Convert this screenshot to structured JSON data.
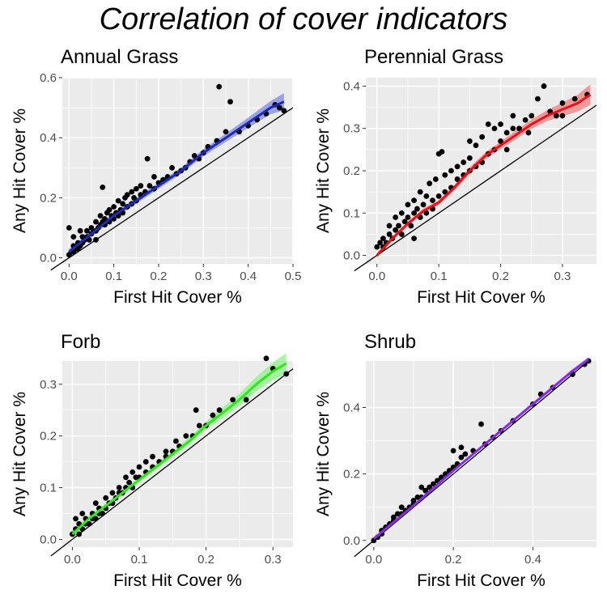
{
  "title": "Correlation of cover indicators",
  "chart_data": [
    {
      "type": "scatter",
      "title": "Annual Grass",
      "xlabel": "First Hit Cover %",
      "ylabel": "Any Hit Cover %",
      "xlim": [
        -0.015,
        0.5
      ],
      "ylim": [
        -0.02,
        0.6
      ],
      "xticks": [
        0.0,
        0.1,
        0.2,
        0.3,
        0.4,
        0.5
      ],
      "xtick_labels": [
        "0.0",
        "0.1",
        "0.2",
        "0.3",
        "0.4",
        "0.5"
      ],
      "yticks": [
        0.0,
        0.2,
        0.4,
        0.6
      ],
      "ytick_labels": [
        "0.0",
        "0.2",
        "0.4",
        "0.6"
      ],
      "fit_color": "#1f2bb0",
      "ribbon_color": "#7f8ae0",
      "points": [
        [
          0.0,
          0.01
        ],
        [
          0.005,
          0.02
        ],
        [
          0.01,
          0.02
        ],
        [
          0.01,
          0.04
        ],
        [
          0.015,
          0.03
        ],
        [
          0.02,
          0.03
        ],
        [
          0.02,
          0.05
        ],
        [
          0.025,
          0.04
        ],
        [
          0.03,
          0.05
        ],
        [
          0.03,
          0.07
        ],
        [
          0.0,
          0.1
        ],
        [
          0.01,
          0.07
        ],
        [
          0.035,
          0.06
        ],
        [
          0.04,
          0.07
        ],
        [
          0.04,
          0.09
        ],
        [
          0.045,
          0.06
        ],
        [
          0.05,
          0.08
        ],
        [
          0.05,
          0.1
        ],
        [
          0.055,
          0.09
        ],
        [
          0.06,
          0.09
        ],
        [
          0.06,
          0.12
        ],
        [
          0.065,
          0.1
        ],
        [
          0.07,
          0.11
        ],
        [
          0.07,
          0.14
        ],
        [
          0.075,
          0.12
        ],
        [
          0.08,
          0.11
        ],
        [
          0.08,
          0.13
        ],
        [
          0.085,
          0.15
        ],
        [
          0.09,
          0.12
        ],
        [
          0.09,
          0.16
        ],
        [
          0.095,
          0.14
        ],
        [
          0.1,
          0.13
        ],
        [
          0.1,
          0.17
        ],
        [
          0.105,
          0.15
        ],
        [
          0.11,
          0.14
        ],
        [
          0.11,
          0.19
        ],
        [
          0.115,
          0.16
        ],
        [
          0.12,
          0.15
        ],
        [
          0.12,
          0.18
        ],
        [
          0.125,
          0.2
        ],
        [
          0.13,
          0.17
        ],
        [
          0.13,
          0.21
        ],
        [
          0.14,
          0.18
        ],
        [
          0.14,
          0.22
        ],
        [
          0.145,
          0.2
        ],
        [
          0.15,
          0.19
        ],
        [
          0.15,
          0.23
        ],
        [
          0.16,
          0.21
        ],
        [
          0.16,
          0.24
        ],
        [
          0.17,
          0.22
        ],
        [
          0.175,
          0.33
        ],
        [
          0.18,
          0.24
        ],
        [
          0.19,
          0.23
        ],
        [
          0.19,
          0.27
        ],
        [
          0.2,
          0.25
        ],
        [
          0.21,
          0.26
        ],
        [
          0.22,
          0.27
        ],
        [
          0.23,
          0.3
        ],
        [
          0.24,
          0.28
        ],
        [
          0.25,
          0.29
        ],
        [
          0.26,
          0.3
        ],
        [
          0.27,
          0.32
        ],
        [
          0.28,
          0.34
        ],
        [
          0.29,
          0.33
        ],
        [
          0.3,
          0.35
        ],
        [
          0.31,
          0.37
        ],
        [
          0.33,
          0.39
        ],
        [
          0.335,
          0.57
        ],
        [
          0.35,
          0.42
        ],
        [
          0.36,
          0.52
        ],
        [
          0.38,
          0.42
        ],
        [
          0.4,
          0.44
        ],
        [
          0.42,
          0.46
        ],
        [
          0.44,
          0.48
        ],
        [
          0.46,
          0.51
        ],
        [
          0.47,
          0.5
        ],
        [
          0.48,
          0.49
        ],
        [
          0.075,
          0.235
        ],
        [
          0.025,
          0.09
        ],
        [
          0.06,
          0.06
        ]
      ],
      "fit": [
        [
          0.0,
          0.02
        ],
        [
          0.05,
          0.08
        ],
        [
          0.1,
          0.14
        ],
        [
          0.15,
          0.19
        ],
        [
          0.2,
          0.24
        ],
        [
          0.25,
          0.29
        ],
        [
          0.3,
          0.35
        ],
        [
          0.35,
          0.4
        ],
        [
          0.4,
          0.45
        ],
        [
          0.45,
          0.5
        ],
        [
          0.48,
          0.52
        ]
      ],
      "ribbon": [
        0.01,
        0.01,
        0.01,
        0.01,
        0.01,
        0.01,
        0.012,
        0.014,
        0.017,
        0.022,
        0.028
      ]
    },
    {
      "type": "scatter",
      "title": "Perennial Grass",
      "xlabel": "First Hit Cover %",
      "ylabel": "Any Hit Cover %",
      "xlim": [
        -0.018,
        0.355
      ],
      "ylim": [
        -0.02,
        0.42
      ],
      "xticks": [
        0.0,
        0.1,
        0.2,
        0.3
      ],
      "xtick_labels": [
        "0.0",
        "0.1",
        "0.2",
        "0.3"
      ],
      "yticks": [
        0.0,
        0.1,
        0.2,
        0.3,
        0.4
      ],
      "ytick_labels": [
        "0.0",
        "0.1",
        "0.2",
        "0.3",
        "0.4"
      ],
      "fit_color": "#e8121a",
      "ribbon_color": "#f07f7f",
      "points": [
        [
          0.0,
          0.02
        ],
        [
          0.005,
          0.03
        ],
        [
          0.01,
          0.02
        ],
        [
          0.01,
          0.04
        ],
        [
          0.015,
          0.03
        ],
        [
          0.02,
          0.05
        ],
        [
          0.02,
          0.07
        ],
        [
          0.025,
          0.04
        ],
        [
          0.03,
          0.06
        ],
        [
          0.03,
          0.09
        ],
        [
          0.035,
          0.07
        ],
        [
          0.04,
          0.05
        ],
        [
          0.04,
          0.1
        ],
        [
          0.045,
          0.08
        ],
        [
          0.05,
          0.09
        ],
        [
          0.05,
          0.12
        ],
        [
          0.055,
          0.07
        ],
        [
          0.06,
          0.1
        ],
        [
          0.06,
          0.13
        ],
        [
          0.065,
          0.11
        ],
        [
          0.07,
          0.09
        ],
        [
          0.07,
          0.15
        ],
        [
          0.075,
          0.12
        ],
        [
          0.08,
          0.1
        ],
        [
          0.08,
          0.14
        ],
        [
          0.085,
          0.17
        ],
        [
          0.09,
          0.13
        ],
        [
          0.09,
          0.11
        ],
        [
          0.095,
          0.18
        ],
        [
          0.1,
          0.14
        ],
        [
          0.1,
          0.24
        ],
        [
          0.105,
          0.245
        ],
        [
          0.11,
          0.15
        ],
        [
          0.11,
          0.19
        ],
        [
          0.12,
          0.16
        ],
        [
          0.12,
          0.2
        ],
        [
          0.13,
          0.18
        ],
        [
          0.13,
          0.21
        ],
        [
          0.14,
          0.19
        ],
        [
          0.14,
          0.22
        ],
        [
          0.15,
          0.2
        ],
        [
          0.15,
          0.23
        ],
        [
          0.16,
          0.21
        ],
        [
          0.16,
          0.26
        ],
        [
          0.17,
          0.22
        ],
        [
          0.17,
          0.28
        ],
        [
          0.18,
          0.24
        ],
        [
          0.18,
          0.31
        ],
        [
          0.19,
          0.25
        ],
        [
          0.19,
          0.3
        ],
        [
          0.2,
          0.27
        ],
        [
          0.21,
          0.29
        ],
        [
          0.21,
          0.25
        ],
        [
          0.22,
          0.3
        ],
        [
          0.23,
          0.3
        ],
        [
          0.24,
          0.32
        ],
        [
          0.25,
          0.33
        ],
        [
          0.26,
          0.37
        ],
        [
          0.27,
          0.4
        ],
        [
          0.28,
          0.34
        ],
        [
          0.29,
          0.33
        ],
        [
          0.3,
          0.36
        ],
        [
          0.32,
          0.37
        ],
        [
          0.34,
          0.38
        ],
        [
          0.2,
          0.31
        ],
        [
          0.15,
          0.27
        ],
        [
          0.22,
          0.33
        ],
        [
          0.245,
          0.29
        ],
        [
          0.3,
          0.33
        ],
        [
          0.06,
          0.04
        ]
      ],
      "fit": [
        [
          0.0,
          0.0
        ],
        [
          0.025,
          0.04
        ],
        [
          0.05,
          0.075
        ],
        [
          0.075,
          0.105
        ],
        [
          0.1,
          0.125
        ],
        [
          0.125,
          0.16
        ],
        [
          0.15,
          0.2
        ],
        [
          0.175,
          0.235
        ],
        [
          0.2,
          0.26
        ],
        [
          0.225,
          0.285
        ],
        [
          0.25,
          0.31
        ],
        [
          0.275,
          0.33
        ],
        [
          0.3,
          0.345
        ],
        [
          0.325,
          0.36
        ],
        [
          0.345,
          0.38
        ]
      ],
      "ribbon": [
        0.006,
        0.005,
        0.005,
        0.006,
        0.006,
        0.007,
        0.008,
        0.008,
        0.009,
        0.01,
        0.011,
        0.013,
        0.016,
        0.02,
        0.024
      ]
    },
    {
      "type": "scatter",
      "title": "Forb",
      "xlabel": "First Hit Cover %",
      "ylabel": "Any Hit Cover %",
      "xlim": [
        -0.015,
        0.33
      ],
      "ylim": [
        -0.015,
        0.345
      ],
      "xticks": [
        0.0,
        0.1,
        0.2,
        0.3
      ],
      "xtick_labels": [
        "0.0",
        "0.1",
        "0.2",
        "0.3"
      ],
      "yticks": [
        0.0,
        0.1,
        0.2,
        0.3
      ],
      "ytick_labels": [
        "0.0",
        "0.1",
        "0.2",
        "0.3"
      ],
      "fit_color": "#2ee81a",
      "ribbon_color": "#90f08a",
      "points": [
        [
          0.0,
          0.01
        ],
        [
          0.005,
          0.02
        ],
        [
          0.01,
          0.01
        ],
        [
          0.01,
          0.03
        ],
        [
          0.015,
          0.02
        ],
        [
          0.02,
          0.03
        ],
        [
          0.02,
          0.04
        ],
        [
          0.025,
          0.03
        ],
        [
          0.03,
          0.04
        ],
        [
          0.03,
          0.05
        ],
        [
          0.035,
          0.04
        ],
        [
          0.04,
          0.05
        ],
        [
          0.04,
          0.06
        ],
        [
          0.045,
          0.05
        ],
        [
          0.05,
          0.06
        ],
        [
          0.05,
          0.08
        ],
        [
          0.055,
          0.07
        ],
        [
          0.06,
          0.07
        ],
        [
          0.06,
          0.09
        ],
        [
          0.065,
          0.08
        ],
        [
          0.07,
          0.09
        ],
        [
          0.07,
          0.1
        ],
        [
          0.075,
          0.09
        ],
        [
          0.08,
          0.1
        ],
        [
          0.08,
          0.12
        ],
        [
          0.085,
          0.11
        ],
        [
          0.09,
          0.1
        ],
        [
          0.09,
          0.13
        ],
        [
          0.095,
          0.12
        ],
        [
          0.1,
          0.12
        ],
        [
          0.1,
          0.14
        ],
        [
          0.11,
          0.13
        ],
        [
          0.11,
          0.15
        ],
        [
          0.12,
          0.14
        ],
        [
          0.12,
          0.16
        ],
        [
          0.13,
          0.15
        ],
        [
          0.14,
          0.16
        ],
        [
          0.14,
          0.17
        ],
        [
          0.15,
          0.17
        ],
        [
          0.155,
          0.19
        ],
        [
          0.16,
          0.18
        ],
        [
          0.17,
          0.2
        ],
        [
          0.18,
          0.2
        ],
        [
          0.19,
          0.22
        ],
        [
          0.185,
          0.25
        ],
        [
          0.2,
          0.22
        ],
        [
          0.21,
          0.24
        ],
        [
          0.22,
          0.25
        ],
        [
          0.24,
          0.27
        ],
        [
          0.26,
          0.27
        ],
        [
          0.29,
          0.35
        ],
        [
          0.3,
          0.33
        ],
        [
          0.32,
          0.32
        ],
        [
          0.005,
          0.04
        ],
        [
          0.015,
          0.05
        ],
        [
          0.035,
          0.07
        ]
      ],
      "fit": [
        [
          0.0,
          0.01
        ],
        [
          0.025,
          0.04
        ],
        [
          0.05,
          0.065
        ],
        [
          0.075,
          0.09
        ],
        [
          0.1,
          0.115
        ],
        [
          0.125,
          0.14
        ],
        [
          0.15,
          0.165
        ],
        [
          0.175,
          0.19
        ],
        [
          0.2,
          0.22
        ],
        [
          0.225,
          0.245
        ],
        [
          0.25,
          0.27
        ],
        [
          0.275,
          0.3
        ],
        [
          0.3,
          0.325
        ],
        [
          0.32,
          0.34
        ]
      ],
      "ribbon": [
        0.008,
        0.006,
        0.005,
        0.005,
        0.005,
        0.005,
        0.006,
        0.007,
        0.008,
        0.01,
        0.012,
        0.014,
        0.017,
        0.02
      ]
    },
    {
      "type": "scatter",
      "title": "Shrub",
      "xlabel": "First Hit Cover %",
      "ylabel": "Any Hit Cover %",
      "xlim": [
        -0.02,
        0.56
      ],
      "ylim": [
        -0.02,
        0.54
      ],
      "xticks": [
        0.0,
        0.2,
        0.4
      ],
      "xtick_labels": [
        "0.0",
        "0.2",
        "0.4"
      ],
      "yticks": [
        0.0,
        0.2,
        0.4
      ],
      "ytick_labels": [
        "0.0",
        "0.2",
        "0.4"
      ],
      "fit_color": "#8a2be2",
      "ribbon_color": "#c29aee",
      "points": [
        [
          0.0,
          0.0
        ],
        [
          0.01,
          0.01
        ],
        [
          0.02,
          0.02
        ],
        [
          0.02,
          0.03
        ],
        [
          0.03,
          0.04
        ],
        [
          0.04,
          0.05
        ],
        [
          0.05,
          0.06
        ],
        [
          0.05,
          0.07
        ],
        [
          0.06,
          0.08
        ],
        [
          0.07,
          0.08
        ],
        [
          0.08,
          0.09
        ],
        [
          0.09,
          0.1
        ],
        [
          0.1,
          0.11
        ],
        [
          0.1,
          0.12
        ],
        [
          0.11,
          0.13
        ],
        [
          0.12,
          0.13
        ],
        [
          0.13,
          0.15
        ],
        [
          0.14,
          0.16
        ],
        [
          0.15,
          0.17
        ],
        [
          0.16,
          0.18
        ],
        [
          0.17,
          0.19
        ],
        [
          0.18,
          0.2
        ],
        [
          0.19,
          0.21
        ],
        [
          0.2,
          0.22
        ],
        [
          0.21,
          0.23
        ],
        [
          0.22,
          0.25
        ],
        [
          0.23,
          0.26
        ],
        [
          0.25,
          0.27
        ],
        [
          0.27,
          0.35
        ],
        [
          0.28,
          0.29
        ],
        [
          0.3,
          0.31
        ],
        [
          0.32,
          0.33
        ],
        [
          0.35,
          0.36
        ],
        [
          0.4,
          0.41
        ],
        [
          0.42,
          0.44
        ],
        [
          0.45,
          0.46
        ],
        [
          0.5,
          0.5
        ],
        [
          0.53,
          0.53
        ],
        [
          0.54,
          0.54
        ],
        [
          0.07,
          0.1
        ],
        [
          0.12,
          0.16
        ],
        [
          0.2,
          0.27
        ],
        [
          0.22,
          0.28
        ]
      ],
      "fit": [
        [
          0.0,
          0.005
        ],
        [
          0.1,
          0.105
        ],
        [
          0.2,
          0.21
        ],
        [
          0.3,
          0.31
        ],
        [
          0.4,
          0.41
        ],
        [
          0.5,
          0.51
        ],
        [
          0.54,
          0.545
        ]
      ],
      "ribbon": [
        0.004,
        0.003,
        0.003,
        0.004,
        0.005,
        0.006,
        0.007
      ]
    }
  ]
}
